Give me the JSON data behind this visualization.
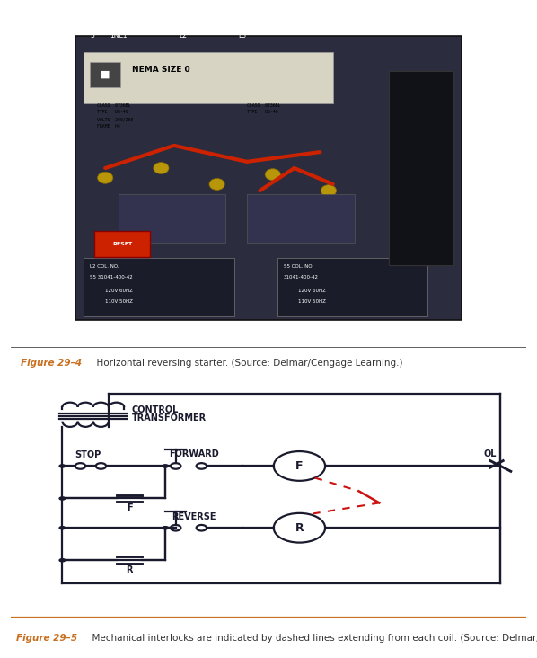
{
  "fig_width": 5.98,
  "fig_height": 7.32,
  "dpi": 100,
  "bg_color": "#ffffff",
  "photo_bg": "#3db8b0",
  "diagram_bg": "#aed4e0",
  "line_color": "#1a1a2e",
  "caption1_color": "#c87020",
  "caption2_color": "#c87020",
  "caption1_bold": "Figure 29–4",
  "caption1_rest": "  Horizontal reversing starter. (Source: Delmar/Cengage Learning.)",
  "caption2_bold": "Figure 29–5",
  "caption2_rest": "  Mechanical interlocks are indicated by dashed lines extending from each coil. (Source: Delmar/Cengage Learning.)",
  "label_control_transformer_1": "CONTROL",
  "label_control_transformer_2": "TRANSFORMER",
  "label_stop": "STOP",
  "label_forward": "FORWARD",
  "label_reverse": "REVERSE",
  "label_F": "F",
  "label_R": "R",
  "label_OL": "OL",
  "label_F_contact": "F",
  "label_R_contact": "R",
  "dashed_color": "#cc1111",
  "lw": 1.6
}
